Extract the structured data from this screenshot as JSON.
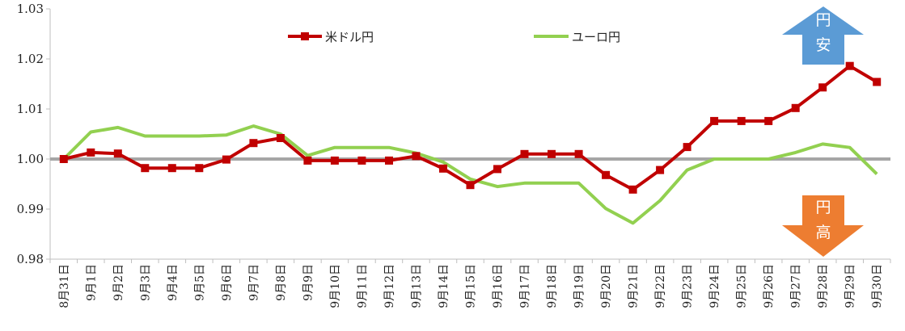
{
  "chart_data": {
    "type": "line",
    "categories": [
      "8月31日",
      "9月1日",
      "9月2日",
      "9月3日",
      "9月4日",
      "9月5日",
      "9月6日",
      "9月7日",
      "9月8日",
      "9月9日",
      "9月10日",
      "9月11日",
      "9月12日",
      "9月13日",
      "9月14日",
      "9月15日",
      "9月16日",
      "9月17日",
      "9月18日",
      "9月19日",
      "9月20日",
      "9月21日",
      "9月22日",
      "9月23日",
      "9月24日",
      "9月25日",
      "9月26日",
      "9月27日",
      "9月28日",
      "9月29日",
      "9月30日"
    ],
    "series": [
      {
        "name": "米ドル円",
        "color": "#c00000",
        "marker": "square",
        "values": [
          1.0,
          1.0013,
          1.0011,
          0.9982,
          0.9982,
          0.9982,
          0.9999,
          1.0032,
          1.0042,
          0.9997,
          0.9997,
          0.9997,
          0.9997,
          1.0006,
          0.9981,
          0.9948,
          0.998,
          1.001,
          1.001,
          1.001,
          0.9968,
          0.9939,
          0.9978,
          1.0024,
          1.0076,
          1.0076,
          1.0076,
          1.0102,
          1.0143,
          1.0186,
          1.0154
        ]
      },
      {
        "name": "ユーロ円",
        "color": "#92d050",
        "marker": "none",
        "values": [
          1.0,
          1.0054,
          1.0063,
          1.0046,
          1.0046,
          1.0046,
          1.0048,
          1.0066,
          1.005,
          1.0007,
          1.0023,
          1.0023,
          1.0023,
          1.0012,
          0.9994,
          0.996,
          0.9945,
          0.9952,
          0.9952,
          0.9952,
          0.9901,
          0.9872,
          0.9917,
          0.9978,
          1.0,
          1.0,
          1.0,
          1.0013,
          1.003,
          1.0023,
          0.997
        ]
      }
    ],
    "ylim": [
      0.98,
      1.03
    ],
    "yticks": [
      "0.98",
      "0.99",
      "1.00",
      "1.01",
      "1.02",
      "1.03"
    ],
    "reference_line": 1.0,
    "reference_color": "#a6a6a6",
    "grid": false,
    "legend_position": "top-center",
    "annotations": [
      {
        "label_line1": "円",
        "label_line2": "安",
        "direction": "up",
        "color": "#5b9bd5"
      },
      {
        "label_line1": "円",
        "label_line2": "高",
        "direction": "down",
        "color": "#ed7d31"
      }
    ]
  }
}
